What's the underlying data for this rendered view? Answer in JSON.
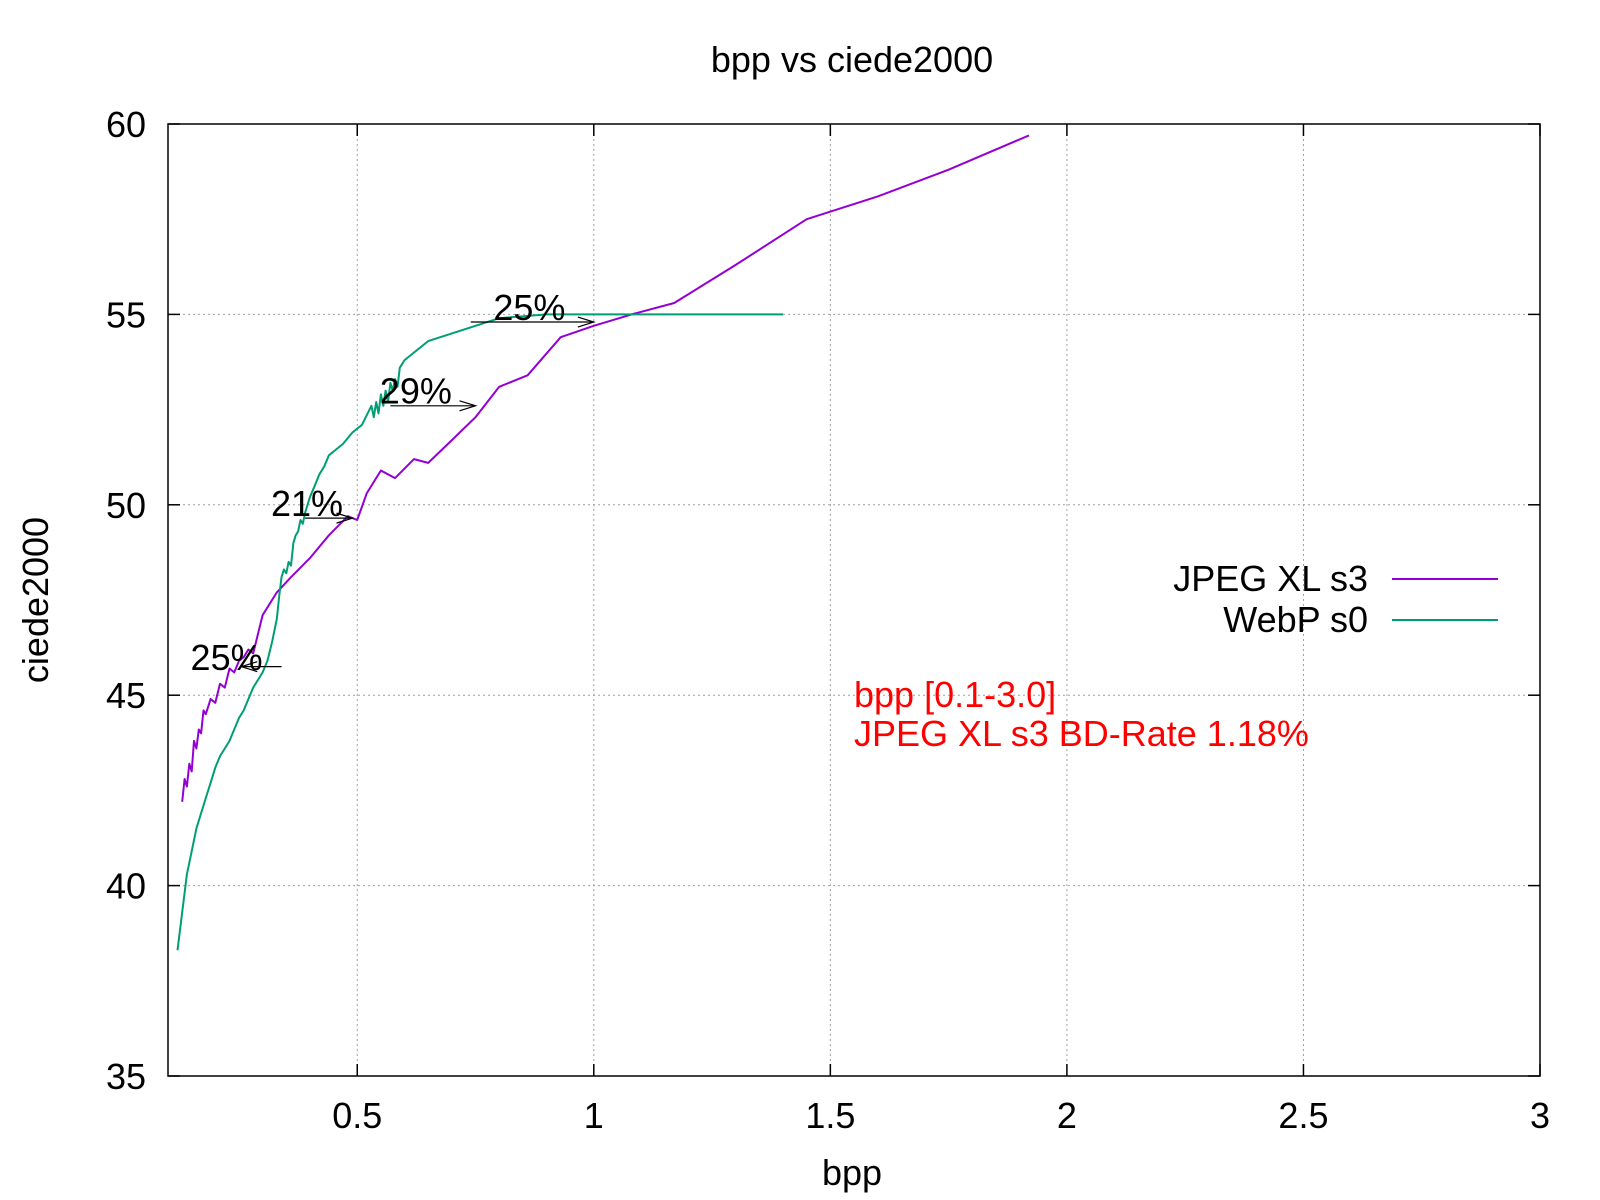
{
  "chart_data": {
    "type": "line",
    "title": "bpp vs ciede2000",
    "xlabel": "bpp",
    "ylabel": "ciede2000",
    "xlim": [
      0.1,
      3.0
    ],
    "ylim": [
      35,
      60
    ],
    "xticks": [
      0.5,
      1,
      1.5,
      2,
      2.5,
      3
    ],
    "yticks": [
      35,
      40,
      45,
      50,
      55,
      60
    ],
    "xtick_labels": [
      "0.5",
      "1",
      "1.5",
      "2",
      "2.5",
      "3"
    ],
    "ytick_labels": [
      "35",
      "40",
      "45",
      "50",
      "55",
      "60"
    ],
    "grid": true,
    "legend_position": "right",
    "series": [
      {
        "name": "JPEG XL s3",
        "color": "#9400d3",
        "x": [
          0.13,
          0.135,
          0.14,
          0.145,
          0.15,
          0.155,
          0.16,
          0.165,
          0.17,
          0.175,
          0.18,
          0.19,
          0.2,
          0.21,
          0.22,
          0.23,
          0.24,
          0.25,
          0.26,
          0.27,
          0.28,
          0.29,
          0.3,
          0.33,
          0.36,
          0.4,
          0.44,
          0.48,
          0.5,
          0.52,
          0.55,
          0.58,
          0.62,
          0.65,
          0.7,
          0.75,
          0.8,
          0.86,
          0.93,
          1.0,
          1.08,
          1.17,
          1.3,
          1.45,
          1.6,
          1.75,
          1.92
        ],
        "y": [
          42.2,
          42.8,
          42.6,
          43.2,
          43.0,
          43.8,
          43.6,
          44.1,
          44.0,
          44.6,
          44.5,
          44.9,
          44.8,
          45.3,
          45.2,
          45.7,
          45.6,
          45.9,
          46.0,
          46.2,
          46.1,
          46.6,
          47.1,
          47.7,
          48.1,
          48.6,
          49.2,
          49.7,
          49.6,
          50.3,
          50.9,
          50.7,
          51.2,
          51.1,
          51.7,
          52.3,
          53.1,
          53.4,
          54.4,
          54.7,
          55.0,
          55.3,
          56.3,
          57.5,
          58.1,
          58.8,
          59.7
        ]
      },
      {
        "name": "WebP s0",
        "color": "#009e73",
        "x": [
          0.12,
          0.13,
          0.14,
          0.15,
          0.16,
          0.17,
          0.18,
          0.19,
          0.2,
          0.21,
          0.22,
          0.23,
          0.24,
          0.25,
          0.26,
          0.27,
          0.28,
          0.29,
          0.3,
          0.31,
          0.32,
          0.33,
          0.335,
          0.34,
          0.345,
          0.35,
          0.355,
          0.36,
          0.365,
          0.37,
          0.375,
          0.38,
          0.385,
          0.39,
          0.4,
          0.41,
          0.42,
          0.43,
          0.44,
          0.45,
          0.47,
          0.49,
          0.51,
          0.53,
          0.535,
          0.54,
          0.545,
          0.55,
          0.555,
          0.56,
          0.565,
          0.57,
          0.575,
          0.58,
          0.585,
          0.59,
          0.6,
          0.62,
          0.65,
          0.7,
          0.75,
          0.8,
          0.9,
          1.0,
          1.1,
          1.2,
          1.3,
          1.4
        ],
        "y": [
          38.3,
          39.3,
          40.3,
          40.9,
          41.5,
          41.9,
          42.3,
          42.7,
          43.1,
          43.4,
          43.6,
          43.8,
          44.1,
          44.4,
          44.6,
          44.9,
          45.2,
          45.4,
          45.6,
          45.9,
          46.4,
          47.0,
          47.6,
          48.1,
          48.3,
          48.2,
          48.5,
          48.4,
          49.0,
          49.2,
          49.3,
          49.6,
          49.5,
          49.8,
          50.2,
          50.5,
          50.8,
          51.0,
          51.3,
          51.4,
          51.6,
          51.9,
          52.1,
          52.6,
          52.3,
          52.7,
          52.4,
          52.9,
          52.6,
          53.0,
          52.7,
          53.2,
          53.0,
          53.3,
          53.1,
          53.6,
          53.8,
          54.0,
          54.3,
          54.5,
          54.7,
          54.9,
          55.0,
          55.0,
          55.0,
          55.0,
          55.0,
          55.0
        ]
      }
    ],
    "annotations": [
      {
        "text": "25%",
        "x": 0.3,
        "y": 46.0,
        "arrow_from_x": 0.34,
        "arrow_to_x": 0.255,
        "arrow_y": 45.75
      },
      {
        "text": "21%",
        "x": 0.47,
        "y": 50.05,
        "arrow_from_x": 0.39,
        "arrow_to_x": 0.49,
        "arrow_y": 49.65
      },
      {
        "text": "29%",
        "x": 0.7,
        "y": 53.0,
        "arrow_from_x": 0.57,
        "arrow_to_x": 0.75,
        "arrow_y": 52.6
      },
      {
        "text": "25%",
        "x": 0.94,
        "y": 55.2,
        "arrow_from_x": 0.74,
        "arrow_to_x": 1.0,
        "arrow_y": 54.8
      }
    ],
    "notes": {
      "color": "#ff0000",
      "line1": "bpp [0.1-3.0]",
      "line2": "JPEG XL s3 BD-Rate 1.18%"
    }
  }
}
